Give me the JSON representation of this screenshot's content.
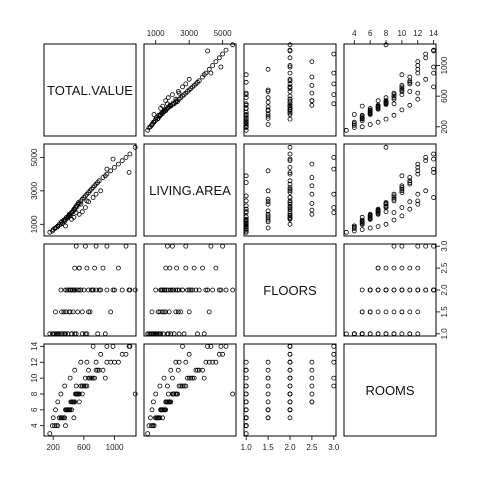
{
  "chart_data": {
    "type": "scatter",
    "layout": "scatterplot-matrix",
    "title": "",
    "variables": [
      {
        "name": "TOTAL.VALUE",
        "range": [
          80,
          1280
        ],
        "ticks": [
          200,
          600,
          1000
        ],
        "tick_labels": [
          "200",
          "600",
          "1000"
        ]
      },
      {
        "name": "LIVING.AREA",
        "range": [
          300,
          5800
        ],
        "ticks": [
          1000,
          3000,
          5000
        ],
        "tick_labels": [
          "1000",
          "3000",
          "5000"
        ]
      },
      {
        "name": "FLOORS",
        "range": [
          0.95,
          3.05
        ],
        "ticks": [
          1.0,
          1.5,
          2.0,
          2.5,
          3.0
        ],
        "tick_labels": [
          "1.0",
          "1.5",
          "2.0",
          "2.5",
          "3.0"
        ]
      },
      {
        "name": "ROOMS",
        "range": [
          2.7,
          14.3
        ],
        "ticks": [
          4,
          6,
          8,
          10,
          12,
          14
        ],
        "tick_labels": [
          "4",
          "6",
          "8",
          "10",
          "12",
          "14"
        ]
      }
    ],
    "observations": [
      [
        155,
        520,
        1,
        3
      ],
      [
        190,
        600,
        1,
        4
      ],
      [
        220,
        750,
        1,
        4
      ],
      [
        240,
        820,
        1,
        4
      ],
      [
        260,
        900,
        1,
        4
      ],
      [
        280,
        980,
        1,
        5
      ],
      [
        300,
        1100,
        1,
        5
      ],
      [
        310,
        1150,
        1.5,
        5
      ],
      [
        320,
        1050,
        1,
        5
      ],
      [
        340,
        1250,
        1.5,
        5
      ],
      [
        350,
        1180,
        1,
        5
      ],
      [
        360,
        1300,
        2,
        6
      ],
      [
        370,
        1400,
        1.5,
        6
      ],
      [
        380,
        1350,
        2,
        6
      ],
      [
        390,
        1450,
        1,
        6
      ],
      [
        400,
        1500,
        2,
        6
      ],
      [
        410,
        1600,
        1.5,
        6
      ],
      [
        420,
        1550,
        2,
        6
      ],
      [
        430,
        1650,
        2,
        7
      ],
      [
        440,
        1700,
        1,
        7
      ],
      [
        450,
        1750,
        2,
        7
      ],
      [
        460,
        1800,
        1.5,
        7
      ],
      [
        470,
        1900,
        2,
        7
      ],
      [
        480,
        1850,
        2.5,
        7
      ],
      [
        490,
        2000,
        2,
        8
      ],
      [
        500,
        2100,
        1,
        8
      ],
      [
        510,
        2050,
        2,
        8
      ],
      [
        520,
        2200,
        1.5,
        8
      ],
      [
        530,
        2300,
        2,
        8
      ],
      [
        540,
        2250,
        2.5,
        8
      ],
      [
        560,
        2400,
        2,
        9
      ],
      [
        580,
        2500,
        1.5,
        9
      ],
      [
        600,
        2600,
        2,
        9
      ],
      [
        620,
        2700,
        1,
        9
      ],
      [
        640,
        2800,
        2.5,
        9
      ],
      [
        660,
        2900,
        2,
        10
      ],
      [
        680,
        3000,
        1.5,
        10
      ],
      [
        700,
        3100,
        2,
        10
      ],
      [
        720,
        3200,
        2,
        10
      ],
      [
        740,
        3300,
        2.5,
        10
      ],
      [
        760,
        3400,
        2,
        11
      ],
      [
        780,
        3500,
        1,
        11
      ],
      [
        800,
        3600,
        2,
        11
      ],
      [
        850,
        3800,
        2.5,
        11
      ],
      [
        900,
        4000,
        2,
        12
      ],
      [
        950,
        4200,
        1.5,
        12
      ],
      [
        1000,
        4400,
        2,
        12
      ],
      [
        1050,
        4600,
        2.5,
        12
      ],
      [
        1100,
        4800,
        2,
        13
      ],
      [
        1150,
        5000,
        3,
        13
      ],
      [
        1200,
        5200,
        2,
        14
      ],
      [
        980,
        4900,
        2,
        14
      ],
      [
        900,
        4300,
        3,
        14
      ],
      [
        720,
        2600,
        2,
        14
      ],
      [
        640,
        2400,
        1,
        12
      ],
      [
        560,
        2200,
        2,
        12
      ],
      [
        480,
        1900,
        1,
        11
      ],
      [
        420,
        1500,
        1.5,
        10
      ],
      [
        350,
        1250,
        1,
        9
      ],
      [
        300,
        1000,
        2,
        8
      ],
      [
        260,
        860,
        1,
        7
      ],
      [
        230,
        780,
        1.5,
        6
      ],
      [
        200,
        680,
        1,
        5
      ],
      [
        500,
        1700,
        3,
        9
      ],
      [
        620,
        2000,
        3,
        10
      ],
      [
        760,
        2800,
        3,
        12
      ],
      [
        540,
        1600,
        2.5,
        7
      ],
      [
        580,
        1750,
        1,
        8
      ],
      [
        440,
        1300,
        1,
        6
      ],
      [
        660,
        2350,
        1.5,
        11
      ],
      [
        820,
        3000,
        2,
        13
      ],
      [
        880,
        3900,
        1,
        10
      ],
      [
        1270,
        5600,
        2,
        8
      ],
      [
        1190,
        4100,
        2,
        14
      ],
      [
        360,
        900,
        1,
        4
      ],
      [
        470,
        1420,
        2,
        5
      ]
    ]
  }
}
